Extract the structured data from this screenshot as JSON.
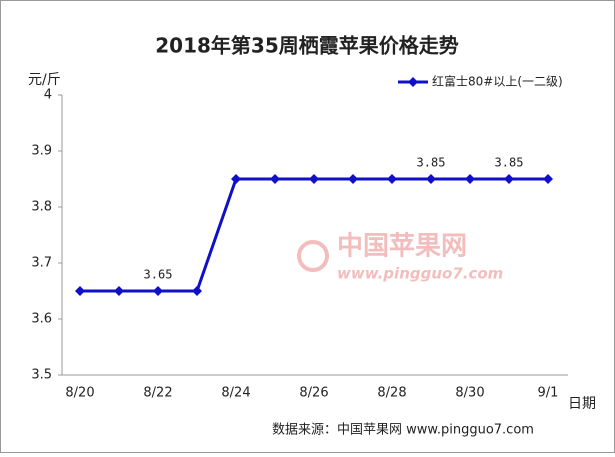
{
  "chart_data": {
    "type": "line",
    "title": "2018年第35周栖霞苹果价格走势",
    "y_label": "元/斤",
    "x_label": "日期",
    "source": "数据来源：中国苹果网 www.pingguo7.com",
    "watermark": {
      "name": "中国苹果网",
      "url": "www.pingguo7.com"
    },
    "categories": [
      "8/20",
      null,
      "8/22",
      null,
      "8/24",
      null,
      "8/26",
      null,
      "8/28",
      null,
      "8/30",
      null,
      "9/1"
    ],
    "series": [
      {
        "name": "红富士80#以上(一二级)",
        "color": "#1010c8",
        "values": [
          3.65,
          3.65,
          3.65,
          3.65,
          3.85,
          3.85,
          3.85,
          3.85,
          3.85,
          3.85,
          3.85,
          3.85,
          3.85
        ],
        "value_labels": [
          null,
          null,
          "3.65",
          null,
          null,
          null,
          null,
          null,
          null,
          "3.85",
          null,
          "3.85",
          null
        ]
      }
    ],
    "ylim": [
      3.5,
      4
    ],
    "yticks": [
      3.5,
      3.6,
      3.7,
      3.8,
      3.9,
      4
    ],
    "grid": false,
    "legend": "top-right"
  }
}
